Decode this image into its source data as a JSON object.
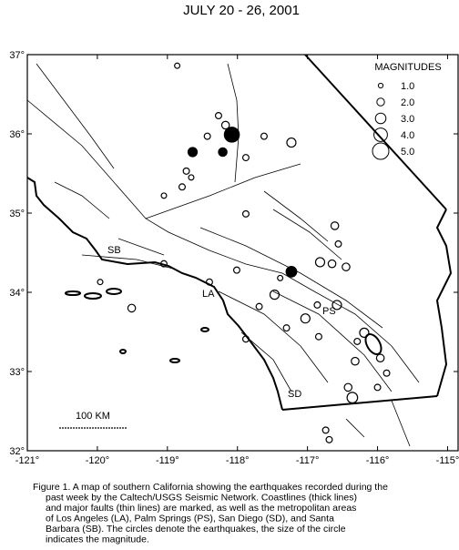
{
  "map": {
    "title": "JULY 20 - 26, 2001",
    "xlim": [
      -121,
      -114.85
    ],
    "ylim": [
      32,
      37
    ],
    "xticks": [
      {
        "value": -121,
        "label": "-121°"
      },
      {
        "value": -120,
        "label": "-120°"
      },
      {
        "value": -119,
        "label": "-119°"
      },
      {
        "value": -118,
        "label": "-118°"
      },
      {
        "value": -117,
        "label": "-117°"
      },
      {
        "value": -116,
        "label": "-116°"
      },
      {
        "value": -115,
        "label": "-115°"
      }
    ],
    "yticks": [
      {
        "value": 32,
        "label": "32°"
      },
      {
        "value": 33,
        "label": "33°"
      },
      {
        "value": 34,
        "label": "34°"
      },
      {
        "value": 35,
        "label": "35°"
      },
      {
        "value": 36,
        "label": "36°"
      },
      {
        "value": 37,
        "label": "37°"
      }
    ],
    "legend": {
      "title": "MAGNITUDES",
      "magnitudes": [
        {
          "value": 1,
          "label": "1.0"
        },
        {
          "value": 2,
          "label": "2.0"
        },
        {
          "value": 3,
          "label": "3.0"
        },
        {
          "value": 4,
          "label": "4.0"
        },
        {
          "value": 5,
          "label": "5.0"
        }
      ]
    },
    "places": {
      "sb": "SB",
      "la": "LA",
      "ps": "PS",
      "sd": "SD"
    },
    "scale_bar": "100 KM",
    "events": {
      "lon": [
        -118.08,
        -117.23,
        -118.64,
        -118.21,
        -117.23,
        -118.17,
        -118.27,
        -117.62,
        -117.88,
        -118.86,
        -118.73,
        -118.79,
        -119.05,
        -117.88,
        -116.61,
        -116.56,
        -116.65,
        -116.45,
        -116.82,
        -117.47,
        -117.03,
        -116.58,
        -116.86,
        -116.19,
        -116.32,
        -115.96,
        -115.87,
        -116.42,
        -116.36,
        -116.0,
        -116.74,
        -116.69,
        -119.51,
        -117.88,
        -118.01,
        -118.4,
        -119.05,
        -117.69,
        -117.39,
        -119.96,
        -116.29,
        -117.3,
        -116.84,
        -118.43,
        -118.66
      ],
      "lat": [
        35.99,
        34.26,
        35.77,
        35.77,
        35.89,
        36.11,
        36.23,
        35.97,
        35.7,
        36.86,
        35.53,
        35.33,
        35.22,
        34.99,
        34.84,
        34.61,
        34.36,
        34.32,
        34.38,
        33.97,
        33.67,
        33.84,
        33.84,
        33.49,
        33.13,
        33.17,
        32.98,
        32.8,
        32.67,
        32.8,
        32.26,
        32.14,
        33.8,
        33.41,
        34.28,
        34.13,
        34.36,
        33.82,
        34.18,
        34.13,
        33.38,
        33.55,
        33.44,
        35.97,
        35.45
      ],
      "mag": [
        4.5,
        3.0,
        2.5,
        2.3,
        2.5,
        2.0,
        1.5,
        1.5,
        1.5,
        1.2,
        1.5,
        1.5,
        1.2,
        1.5,
        2.0,
        1.5,
        2.0,
        2.0,
        2.5,
        2.5,
        2.5,
        2.5,
        1.5,
        2.5,
        2.0,
        2.0,
        1.5,
        2.0,
        3.0,
        1.5,
        1.5,
        1.5,
        2.0,
        1.5,
        1.5,
        1.5,
        1.5,
        1.5,
        1.2,
        1.2,
        1.5,
        1.5,
        1.5,
        1.5,
        1.2
      ],
      "filled": [
        true,
        true,
        true,
        true,
        false,
        false,
        false,
        false,
        false,
        false,
        false,
        false,
        false,
        false,
        false,
        false,
        false,
        false,
        false,
        false,
        false,
        false,
        false,
        false,
        false,
        false,
        false,
        false,
        false,
        false,
        false,
        false,
        false,
        false,
        false,
        false,
        false,
        false,
        false,
        false,
        false,
        false,
        false,
        false,
        false
      ]
    },
    "caption": [
      "Figure 1.  A map of southern California showing the earthquakes recorded during the",
      "past week by the Caltech/USGS Seismic Network.  Coastlines (thick lines)",
      "and major faults (thin lines) are marked, as well as the metropolitan areas",
      "of Los Angeles (LA), Palm Springs (PS), San Diego (SD), and Santa",
      "Barbara (SB).  The circles denote the earthquakes, the size of the circle",
      "indicates the magnitude."
    ]
  }
}
